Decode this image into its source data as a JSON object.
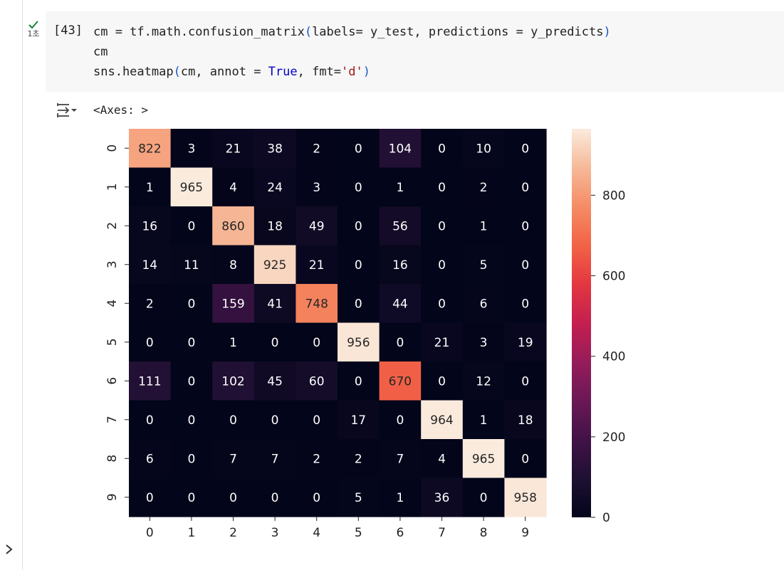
{
  "run": {
    "time_label": "1초"
  },
  "cell": {
    "execution_count": "[43]",
    "code_line1_a": "cm = tf.math.confusion_matrix",
    "code_line1_b": "(",
    "code_line1_c": "labels= y_test, predictions = y_predicts",
    "code_line1_d": ")",
    "code_line2": "cm",
    "code_line3_a": "sns.heatmap",
    "code_line3_b": "(",
    "code_line3_c": "cm, annot = ",
    "code_line3_kw": "True",
    "code_line3_d": ", fmt=",
    "code_line3_str": "'d'",
    "code_line3_e": ")"
  },
  "output": {
    "text": "<Axes: >"
  },
  "icons": {
    "run_status": "check-icon",
    "output_toggle": "output-toggle-icon",
    "collapse": "chevron-right-icon"
  },
  "chart_data": {
    "type": "heatmap",
    "title": "",
    "xlabel": "",
    "ylabel": "",
    "x_categories": [
      "0",
      "1",
      "2",
      "3",
      "4",
      "5",
      "6",
      "7",
      "8",
      "9"
    ],
    "y_categories": [
      "0",
      "1",
      "2",
      "3",
      "4",
      "5",
      "6",
      "7",
      "8",
      "9"
    ],
    "values": [
      [
        822,
        3,
        21,
        38,
        2,
        0,
        104,
        0,
        10,
        0
      ],
      [
        1,
        965,
        4,
        24,
        3,
        0,
        1,
        0,
        2,
        0
      ],
      [
        16,
        0,
        860,
        18,
        49,
        0,
        56,
        0,
        1,
        0
      ],
      [
        14,
        11,
        8,
        925,
        21,
        0,
        16,
        0,
        5,
        0
      ],
      [
        2,
        0,
        159,
        41,
        748,
        0,
        44,
        0,
        6,
        0
      ],
      [
        0,
        0,
        1,
        0,
        0,
        956,
        0,
        21,
        3,
        19
      ],
      [
        111,
        0,
        102,
        45,
        60,
        0,
        670,
        0,
        12,
        0
      ],
      [
        0,
        0,
        0,
        0,
        0,
        17,
        0,
        964,
        1,
        18
      ],
      [
        6,
        0,
        7,
        7,
        2,
        2,
        7,
        4,
        965,
        0
      ],
      [
        0,
        0,
        0,
        0,
        0,
        5,
        1,
        36,
        0,
        958
      ]
    ],
    "colormap": "rocket",
    "colorbar": {
      "min": 0,
      "max": 965,
      "ticks": [
        0,
        200,
        400,
        600,
        800
      ]
    },
    "annot": true,
    "fmt": "d",
    "grid": false
  }
}
